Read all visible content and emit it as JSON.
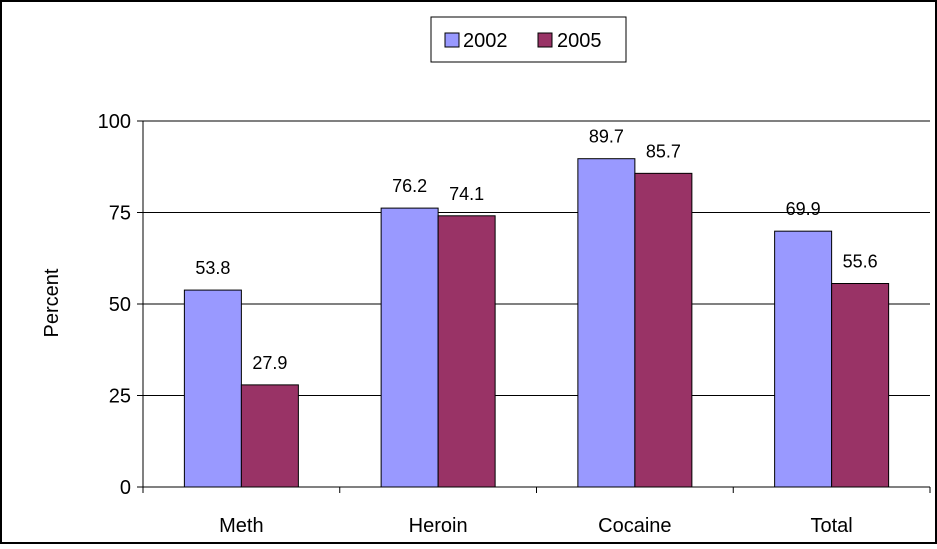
{
  "chart_data": {
    "type": "bar",
    "categories": [
      "Meth",
      "Heroin",
      "Cocaine",
      "Total"
    ],
    "series": [
      {
        "name": "2002",
        "values": [
          53.8,
          76.2,
          89.7,
          69.9
        ],
        "color": "#9999ff"
      },
      {
        "name": "2005",
        "values": [
          27.9,
          74.1,
          85.7,
          55.6
        ],
        "color": "#993366"
      }
    ],
    "ylabel": "Percent",
    "ylim": [
      0,
      100
    ],
    "yticks": [
      "0",
      "25",
      "50",
      "75",
      "100"
    ],
    "grid": true,
    "legend_position": "top-center",
    "data_labels": true
  }
}
